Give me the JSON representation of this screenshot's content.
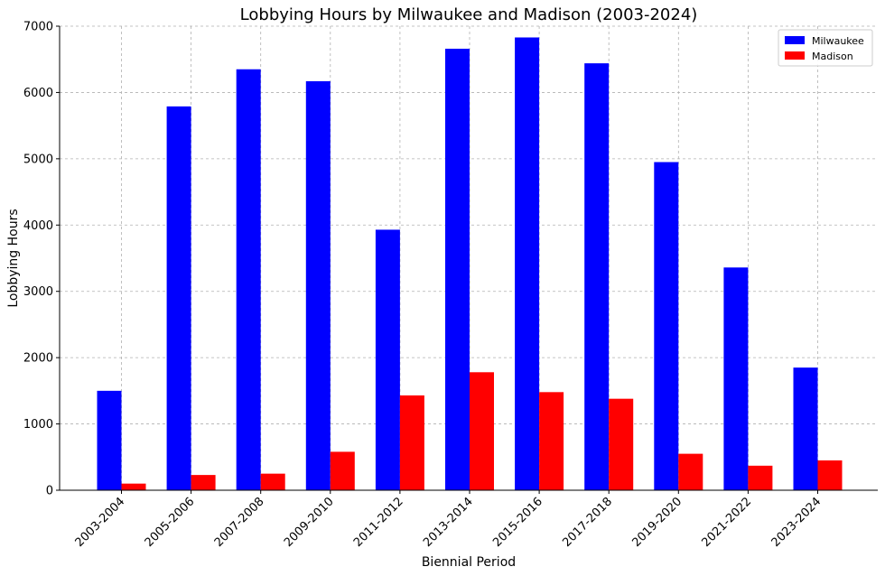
{
  "chart_data": {
    "type": "bar",
    "title": "Lobbying Hours by Milwaukee and Madison (2003-2024)",
    "xlabel": "Biennial Period",
    "ylabel": "Lobbying Hours",
    "categories": [
      "2003-2004",
      "2005-2006",
      "2007-2008",
      "2009-2010",
      "2011-2012",
      "2013-2014",
      "2015-2016",
      "2017-2018",
      "2019-2020",
      "2021-2022",
      "2023-2024"
    ],
    "series": [
      {
        "name": "Milwaukee",
        "color": "#0000ff",
        "values": [
          1500,
          5790,
          6350,
          6170,
          3930,
          6660,
          6830,
          6440,
          4950,
          3360,
          1850
        ]
      },
      {
        "name": "Madison",
        "color": "#ff0000",
        "values": [
          100,
          230,
          250,
          580,
          1430,
          1780,
          1480,
          1380,
          550,
          370,
          450
        ]
      }
    ],
    "ylim": [
      0,
      7000
    ],
    "yticks": [
      0,
      1000,
      2000,
      3000,
      4000,
      5000,
      6000,
      7000
    ],
    "grid": true,
    "legend_position": "top-right"
  }
}
